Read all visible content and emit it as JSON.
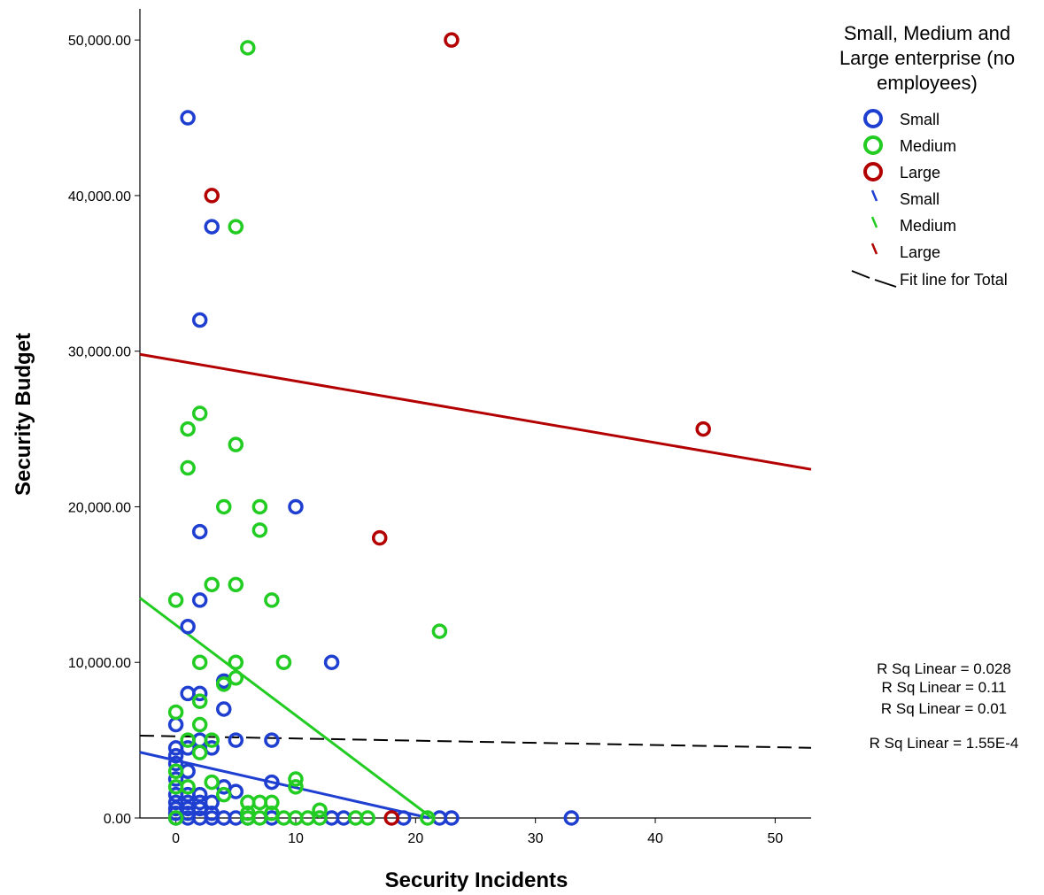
{
  "chart_data": {
    "type": "scatter",
    "xlabel": "Security Incidents",
    "ylabel": "Security Budget",
    "xlim": [
      -3,
      53
    ],
    "ylim": [
      0,
      52000
    ],
    "x_ticks": [
      0,
      10,
      20,
      30,
      40,
      50
    ],
    "x_tick_labels": [
      "0",
      "10",
      "20",
      "30",
      "40",
      "50"
    ],
    "y_ticks": [
      0,
      10000,
      20000,
      30000,
      40000,
      50000
    ],
    "y_tick_labels": [
      "0.00",
      "10,000.00",
      "20,000.00",
      "30,000.00",
      "40,000.00",
      "50,000.00"
    ],
    "grid": false,
    "legend": {
      "title": "Small, Medium and Large enterprise (no employees)",
      "title_lines": [
        "Small, Medium and",
        "Large enterprise (no",
        "employees)"
      ],
      "position": "top-right",
      "marker_entries": [
        {
          "label": "Small",
          "color": "#1f3fd0"
        },
        {
          "label": "Medium",
          "color": "#22cc22"
        },
        {
          "label": "Large",
          "color": "#b30000"
        }
      ],
      "line_entries": [
        {
          "label": "Small",
          "color": "#1f3fd0"
        },
        {
          "label": "Medium",
          "color": "#22cc22"
        },
        {
          "label": "Large",
          "color": "#b30000"
        }
      ],
      "total_label": "Fit line for Total"
    },
    "series": [
      {
        "name": "Small",
        "color": "#1f3fd0",
        "points": [
          [
            1,
            45000
          ],
          [
            3,
            38000
          ],
          [
            2,
            32000
          ],
          [
            10,
            20000
          ],
          [
            2,
            18400
          ],
          [
            2,
            14000
          ],
          [
            13,
            10000
          ],
          [
            1,
            12300
          ],
          [
            4,
            8800
          ],
          [
            1,
            8000
          ],
          [
            2,
            8000
          ],
          [
            4,
            7000
          ],
          [
            0,
            6000
          ],
          [
            2,
            5000
          ],
          [
            5,
            5000
          ],
          [
            8,
            5000
          ],
          [
            0,
            4500
          ],
          [
            1,
            4500
          ],
          [
            3,
            4500
          ],
          [
            0,
            4000
          ],
          [
            0,
            3500
          ],
          [
            1,
            3000
          ],
          [
            0,
            2500
          ],
          [
            8,
            2300
          ],
          [
            4,
            2000
          ],
          [
            5,
            1700
          ],
          [
            0,
            1500
          ],
          [
            1,
            1500
          ],
          [
            2,
            1500
          ],
          [
            0,
            1000
          ],
          [
            1,
            1000
          ],
          [
            2,
            1000
          ],
          [
            3,
            1000
          ],
          [
            0,
            600
          ],
          [
            1,
            600
          ],
          [
            2,
            600
          ],
          [
            0,
            300
          ],
          [
            1,
            300
          ],
          [
            3,
            300
          ],
          [
            0,
            0
          ],
          [
            1,
            0
          ],
          [
            2,
            0
          ],
          [
            3,
            0
          ],
          [
            4,
            0
          ],
          [
            5,
            0
          ],
          [
            6,
            0
          ],
          [
            8,
            0
          ],
          [
            13,
            0
          ],
          [
            14,
            0
          ],
          [
            19,
            0
          ],
          [
            22,
            0
          ],
          [
            23,
            0
          ],
          [
            33,
            0
          ]
        ],
        "fit": {
          "intercept": 3700,
          "slope": -175
        }
      },
      {
        "name": "Medium",
        "color": "#22cc22",
        "points": [
          [
            6,
            49500
          ],
          [
            5,
            38000
          ],
          [
            2,
            26000
          ],
          [
            1,
            25000
          ],
          [
            5,
            24000
          ],
          [
            1,
            22500
          ],
          [
            4,
            20000
          ],
          [
            7,
            20000
          ],
          [
            7,
            18500
          ],
          [
            3,
            15000
          ],
          [
            5,
            15000
          ],
          [
            0,
            14000
          ],
          [
            8,
            14000
          ],
          [
            22,
            12000
          ],
          [
            2,
            10000
          ],
          [
            5,
            10000
          ],
          [
            9,
            10000
          ],
          [
            5,
            9000
          ],
          [
            4,
            8600
          ],
          [
            2,
            7500
          ],
          [
            0,
            6800
          ],
          [
            2,
            6000
          ],
          [
            1,
            5000
          ],
          [
            3,
            5000
          ],
          [
            2,
            4200
          ],
          [
            0,
            3000
          ],
          [
            10,
            2500
          ],
          [
            3,
            2300
          ],
          [
            0,
            2000
          ],
          [
            1,
            2000
          ],
          [
            10,
            2000
          ],
          [
            4,
            1500
          ],
          [
            6,
            1000
          ],
          [
            7,
            1000
          ],
          [
            8,
            1000
          ],
          [
            12,
            500
          ],
          [
            6,
            300
          ],
          [
            8,
            300
          ],
          [
            0,
            0
          ],
          [
            6,
            0
          ],
          [
            7,
            0
          ],
          [
            9,
            0
          ],
          [
            10,
            0
          ],
          [
            11,
            0
          ],
          [
            12,
            0
          ],
          [
            15,
            0
          ],
          [
            16,
            0
          ],
          [
            21,
            0
          ]
        ],
        "fit": {
          "intercept": 12400,
          "slope": -580
        }
      },
      {
        "name": "Large",
        "color": "#b30000",
        "points": [
          [
            23,
            50000
          ],
          [
            3,
            40000
          ],
          [
            44,
            25000
          ],
          [
            17,
            18000
          ],
          [
            18,
            0
          ]
        ],
        "fit": {
          "intercept": 29400,
          "slope": -132
        }
      }
    ],
    "total_fit": {
      "intercept": 5250,
      "slope": -14,
      "color": "#000000",
      "dashed": true
    },
    "annotations": [
      "R Sq Linear = 0.028",
      "R Sq Linear = 0.11",
      "R Sq Linear = 0.01",
      "R Sq Linear = 1.55E-4"
    ]
  }
}
